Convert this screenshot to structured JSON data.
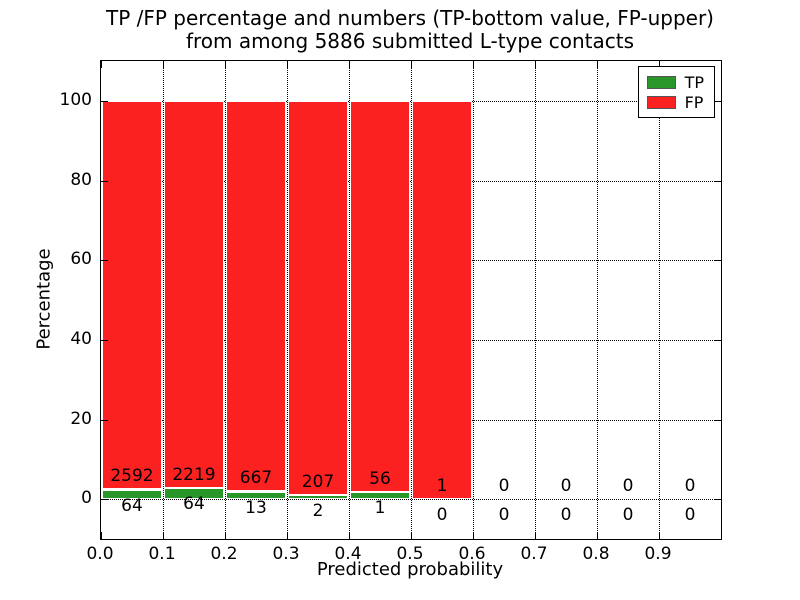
{
  "title": {
    "line1": "TP /FP percentage and numbers (TP-bottom value, FP-upper)",
    "line2": "from among 5886 submitted L-type contacts"
  },
  "chart_data": {
    "type": "bar",
    "stacked": true,
    "title": "TP /FP percentage and numbers (TP-bottom value, FP-upper) from among 5886 submitted L-type contacts",
    "xlabel": "Predicted probability",
    "ylabel": "Percentage",
    "xlim": [
      0.0,
      1.0
    ],
    "ylim": [
      -10,
      110
    ],
    "xticks": [
      "0.0",
      "0.1",
      "0.2",
      "0.3",
      "0.4",
      "0.5",
      "0.6",
      "0.7",
      "0.8",
      "0.9"
    ],
    "yticks": [
      0,
      20,
      40,
      60,
      80,
      100
    ],
    "bin_width": 0.1,
    "bin_starts": [
      0.0,
      0.1,
      0.2,
      0.3,
      0.4,
      0.5,
      0.6,
      0.7,
      0.8,
      0.9
    ],
    "series": [
      {
        "name": "TP",
        "color": "#289628",
        "counts": [
          64,
          64,
          13,
          2,
          1,
          0,
          0,
          0,
          0,
          0
        ]
      },
      {
        "name": "FP",
        "color": "#fc2121",
        "counts": [
          2592,
          2219,
          667,
          207,
          56,
          1,
          0,
          0,
          0,
          0
        ]
      }
    ],
    "total_submitted": 5886,
    "values_unit": "percent of bin total, TP and FP stacked to 100",
    "grid": true,
    "grid_style": "dotted",
    "legend_position": "upper right",
    "bar_edge_color": "#ffffff",
    "label_note": "TP count printed below baseline, FP count printed above TP bar top"
  }
}
